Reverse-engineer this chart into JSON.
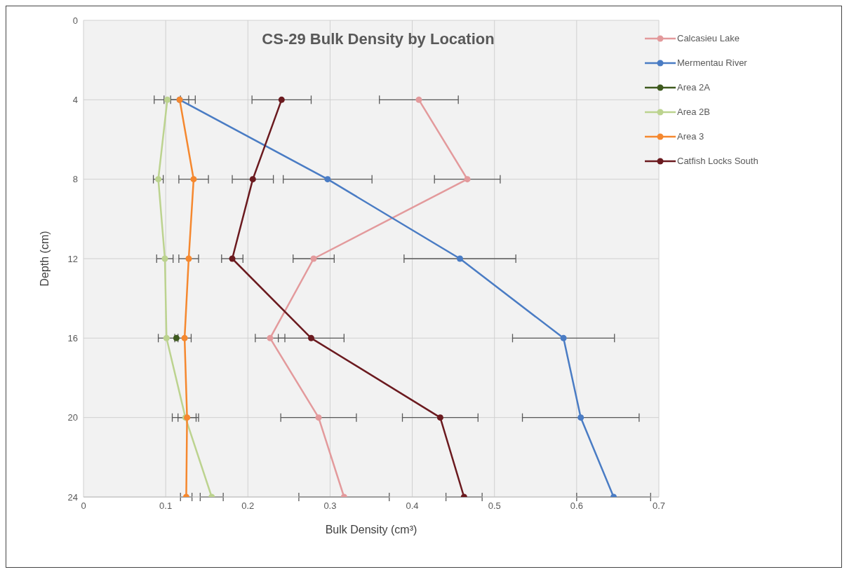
{
  "chart_data": {
    "type": "line",
    "title": "CS-29 Bulk Density by Location",
    "xlabel": "Bulk Density (cm³)",
    "ylabel": "Depth (cm)",
    "xlim": [
      0,
      0.7
    ],
    "xticks": [
      0,
      0.1,
      0.2,
      0.3,
      0.4,
      0.5,
      0.6,
      0.7
    ],
    "ylim": [
      24,
      0
    ],
    "yticks": [
      0,
      4,
      8,
      12,
      16,
      20,
      24
    ],
    "grid": true,
    "legend": "top right",
    "marker": "circle",
    "line_style": "solid",
    "series": [
      {
        "name": "Calcasieu Lake",
        "color": "#e39a9c",
        "x": [
          0.408,
          0.467,
          0.28,
          0.227,
          0.286,
          0.317
        ],
        "values": [
          4,
          8,
          12,
          16,
          20,
          24
        ],
        "xerrors": [
          0.048,
          0.04,
          0.025,
          0.018,
          0.046,
          0.055
        ]
      },
      {
        "name": "Mermentau River",
        "color": "#4a7cc4",
        "x": [
          0.117,
          0.297,
          0.458,
          0.584,
          0.605,
          0.645
        ],
        "values": [
          4,
          8,
          12,
          16,
          20,
          24
        ],
        "xerrors": [
          0.011,
          0.054,
          0.068,
          0.062,
          0.071,
          0.045
        ]
      },
      {
        "name": "Area 2A",
        "color": "#3e5a1e",
        "x": [
          0.113
        ],
        "values": [
          16
        ],
        "xerrors": [
          null
        ]
      },
      {
        "name": "Area 2B",
        "color": "#bcd38f",
        "x": [
          0.102,
          0.091,
          0.099,
          0.101,
          0.124,
          0.156
        ],
        "values": [
          4,
          8,
          12,
          16,
          20,
          24
        ],
        "xerrors": [
          0.016,
          0.006,
          0.01,
          0.01,
          0.016,
          0.014
        ]
      },
      {
        "name": "Area 3",
        "color": "#f5882f",
        "x": [
          0.117,
          0.134,
          0.128,
          0.123,
          0.126,
          0.125
        ],
        "values": [
          4,
          8,
          12,
          16,
          20,
          24
        ],
        "xerrors": [
          0.019,
          0.018,
          0.012,
          0.008,
          0.011,
          0.007
        ]
      },
      {
        "name": "Catfish Locks South",
        "color": "#6b1a1f",
        "x": [
          0.241,
          0.206,
          0.181,
          0.277,
          0.434,
          0.463
        ],
        "values": [
          4,
          8,
          12,
          16,
          20,
          24
        ],
        "xerrors": [
          0.036,
          0.025,
          0.013,
          0.04,
          0.046,
          0.022
        ]
      }
    ]
  }
}
